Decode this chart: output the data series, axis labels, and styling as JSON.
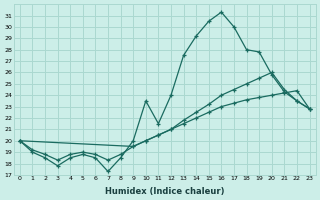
{
  "xlabel": "Humidex (Indice chaleur)",
  "background_color": "#cceee8",
  "grid_color": "#aad8d0",
  "line_color": "#1a6b60",
  "xlim": [
    -0.5,
    23.5
  ],
  "ylim": [
    17,
    32
  ],
  "yticks": [
    17,
    18,
    19,
    20,
    21,
    22,
    23,
    24,
    25,
    26,
    27,
    28,
    29,
    30,
    31
  ],
  "xticks": [
    0,
    1,
    2,
    3,
    4,
    5,
    6,
    7,
    8,
    9,
    10,
    11,
    12,
    13,
    14,
    15,
    16,
    17,
    18,
    19,
    20,
    21,
    22,
    23
  ],
  "line1_x": [
    0,
    1,
    2,
    3,
    4,
    5,
    6,
    7,
    8,
    9,
    10,
    11,
    12,
    13,
    14,
    15,
    16,
    17,
    18,
    19,
    20,
    21,
    22,
    23
  ],
  "line1_y": [
    20.0,
    19.0,
    18.5,
    17.8,
    18.5,
    18.8,
    18.5,
    17.3,
    18.5,
    20.0,
    23.5,
    21.5,
    24.0,
    27.5,
    29.2,
    30.5,
    31.3,
    30.0,
    28.0,
    27.8,
    25.8,
    24.3,
    23.5,
    22.8
  ],
  "line2_x": [
    0,
    1,
    2,
    3,
    4,
    5,
    6,
    7,
    8,
    9,
    10,
    11,
    12,
    13,
    14,
    15,
    16,
    17,
    18,
    19,
    20,
    21,
    22,
    23
  ],
  "line2_y": [
    20.0,
    19.2,
    18.8,
    18.3,
    18.8,
    19.0,
    18.8,
    18.3,
    18.8,
    19.5,
    20.0,
    20.5,
    21.0,
    21.5,
    22.0,
    22.5,
    23.0,
    23.3,
    23.6,
    23.8,
    24.0,
    24.2,
    24.4,
    22.8
  ],
  "line3_x": [
    0,
    9,
    10,
    11,
    12,
    13,
    14,
    15,
    16,
    17,
    18,
    19,
    20,
    21,
    22,
    23
  ],
  "line3_y": [
    20.0,
    19.5,
    20.0,
    20.5,
    21.0,
    21.8,
    22.5,
    23.2,
    24.0,
    24.5,
    25.0,
    25.5,
    26.0,
    24.5,
    23.5,
    22.8
  ]
}
